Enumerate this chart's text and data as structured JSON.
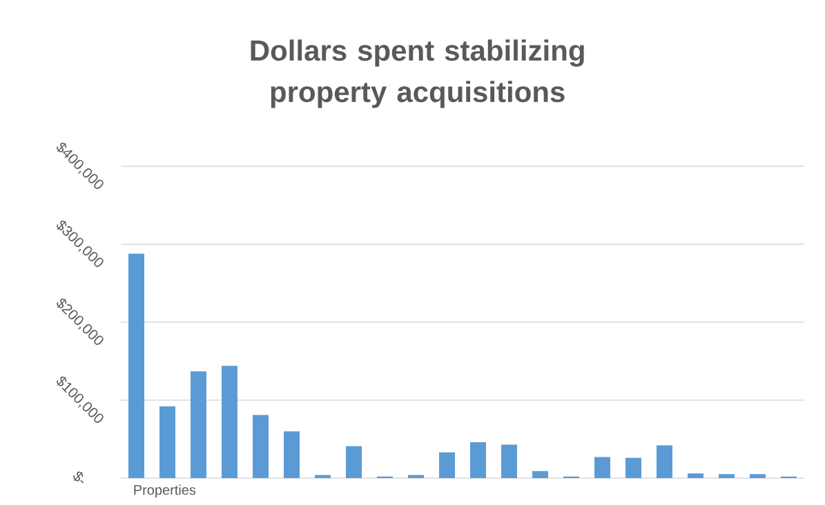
{
  "chart_data": {
    "type": "bar",
    "title": "Dollars spent stabilizing property acquisitions",
    "xlabel": "Properties",
    "categories": [
      null,
      null,
      null,
      null,
      null,
      null,
      null,
      null,
      null,
      null,
      null,
      null,
      null,
      null,
      null,
      null,
      null,
      null,
      null,
      null,
      null,
      null
    ],
    "values": [
      288000,
      92000,
      137000,
      144000,
      81000,
      60000,
      4000,
      41000,
      2000,
      4000,
      33000,
      46000,
      43000,
      9000,
      2000,
      27000,
      26000,
      42000,
      6000,
      5000,
      5000,
      2000
    ],
    "color": "#5b9bd5",
    "ylim": [
      0,
      400000
    ],
    "yticks": [
      {
        "value": 0,
        "label": "$-"
      },
      {
        "value": 100000,
        "label": "$100,000"
      },
      {
        "value": 200000,
        "label": "$200,000"
      },
      {
        "value": 300000,
        "label": "$300,000"
      },
      {
        "value": 400000,
        "label": "$400,000"
      }
    ],
    "grid": "y"
  }
}
